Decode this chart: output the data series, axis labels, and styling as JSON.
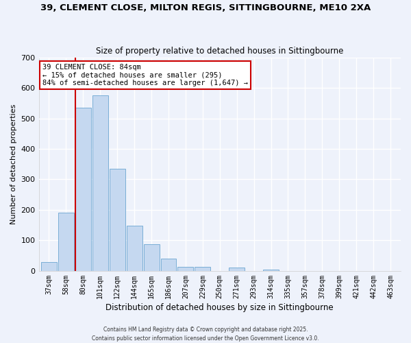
{
  "title": "39, CLEMENT CLOSE, MILTON REGIS, SITTINGBOURNE, ME10 2XA",
  "subtitle": "Size of property relative to detached houses in Sittingbourne",
  "xlabel": "Distribution of detached houses by size in Sittingbourne",
  "ylabel": "Number of detached properties",
  "bar_labels": [
    "37sqm",
    "58sqm",
    "80sqm",
    "101sqm",
    "122sqm",
    "144sqm",
    "165sqm",
    "186sqm",
    "207sqm",
    "229sqm",
    "250sqm",
    "271sqm",
    "293sqm",
    "314sqm",
    "335sqm",
    "357sqm",
    "378sqm",
    "399sqm",
    "421sqm",
    "442sqm",
    "463sqm"
  ],
  "bar_values": [
    30,
    190,
    535,
    575,
    335,
    148,
    87,
    40,
    13,
    13,
    0,
    10,
    0,
    5,
    0,
    0,
    0,
    0,
    0,
    0,
    0
  ],
  "bar_color": "#c5d8f0",
  "bar_edge_color": "#7aaed6",
  "background_color": "#eef2fb",
  "grid_color": "#ffffff",
  "vline_color": "#cc0000",
  "annotation_title": "39 CLEMENT CLOSE: 84sqm",
  "annotation_line1": "← 15% of detached houses are smaller (295)",
  "annotation_line2": "84% of semi-detached houses are larger (1,647) →",
  "annotation_box_edge": "#cc0000",
  "ylim": [
    0,
    700
  ],
  "yticks": [
    0,
    100,
    200,
    300,
    400,
    500,
    600,
    700
  ],
  "footer1": "Contains HM Land Registry data © Crown copyright and database right 2025.",
  "footer2": "Contains public sector information licensed under the Open Government Licence v3.0."
}
